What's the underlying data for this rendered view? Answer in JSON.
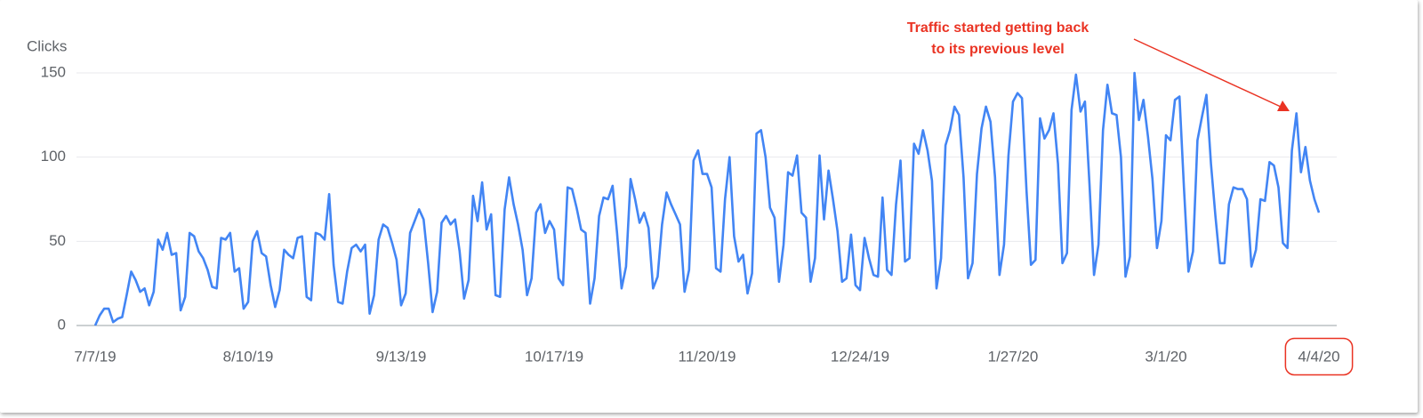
{
  "chart_data": {
    "type": "line",
    "y_label": "Clicks",
    "annotation": [
      "Traffic started getting back",
      "to its previous level"
    ],
    "annotation_color": "#ea3323",
    "categories": [
      "7/7/19",
      null,
      null,
      null,
      null,
      null,
      null,
      null,
      null,
      null,
      null,
      null,
      null,
      null,
      null,
      null,
      null,
      null,
      null,
      null,
      null,
      null,
      null,
      null,
      null,
      null,
      null,
      null,
      null,
      null,
      null,
      null,
      null,
      null,
      "8/10/19",
      null,
      null,
      null,
      null,
      null,
      null,
      null,
      null,
      null,
      null,
      null,
      null,
      null,
      null,
      null,
      null,
      null,
      null,
      null,
      null,
      null,
      null,
      null,
      null,
      null,
      null,
      null,
      null,
      null,
      null,
      null,
      null,
      null,
      "9/13/19",
      null,
      null,
      null,
      null,
      null,
      null,
      null,
      null,
      null,
      null,
      null,
      null,
      null,
      null,
      null,
      null,
      null,
      null,
      null,
      null,
      null,
      null,
      null,
      null,
      null,
      null,
      null,
      null,
      null,
      null,
      null,
      null,
      null,
      "10/17/19",
      null,
      null,
      null,
      null,
      null,
      null,
      null,
      null,
      null,
      null,
      null,
      null,
      null,
      null,
      null,
      null,
      null,
      null,
      null,
      null,
      null,
      null,
      null,
      null,
      null,
      null,
      null,
      null,
      null,
      null,
      null,
      null,
      null,
      "11/20/19",
      null,
      null,
      null,
      null,
      null,
      null,
      null,
      null,
      null,
      null,
      null,
      null,
      null,
      null,
      null,
      null,
      null,
      null,
      null,
      null,
      null,
      null,
      null,
      null,
      null,
      null,
      null,
      null,
      null,
      null,
      null,
      null,
      null,
      "12/24/19",
      null,
      null,
      null,
      null,
      null,
      null,
      null,
      null,
      null,
      null,
      null,
      null,
      null,
      null,
      null,
      null,
      null,
      null,
      null,
      null,
      null,
      null,
      null,
      null,
      null,
      null,
      null,
      null,
      null,
      null,
      null,
      null,
      null,
      "1/27/20",
      null,
      null,
      null,
      null,
      null,
      null,
      null,
      null,
      null,
      null,
      null,
      null,
      null,
      null,
      null,
      null,
      null,
      null,
      null,
      null,
      null,
      null,
      null,
      null,
      null,
      null,
      null,
      null,
      null,
      null,
      null,
      null,
      null,
      "3/1/20",
      null,
      null,
      null,
      null,
      null,
      null,
      null,
      null,
      null,
      null,
      null,
      null,
      null,
      null,
      null,
      null,
      null,
      null,
      null,
      null,
      null,
      null,
      null,
      null,
      null,
      null,
      null,
      null,
      null,
      null,
      null,
      null,
      null,
      "4/4/20"
    ],
    "values": [
      0,
      6,
      10,
      10,
      2,
      4,
      5,
      18,
      32,
      27,
      20,
      22,
      12,
      20,
      51,
      45,
      55,
      42,
      43,
      9,
      17,
      55,
      53,
      44,
      40,
      33,
      23,
      22,
      52,
      51,
      55,
      32,
      34,
      10,
      14,
      50,
      56,
      43,
      41,
      24,
      11,
      21,
      45,
      42,
      40,
      52,
      53,
      17,
      15,
      55,
      54,
      51,
      78,
      36,
      14,
      13,
      32,
      46,
      48,
      44,
      48,
      7,
      18,
      51,
      60,
      58,
      49,
      39,
      12,
      19,
      55,
      62,
      69,
      63,
      37,
      8,
      20,
      61,
      65,
      60,
      63,
      44,
      16,
      27,
      77,
      62,
      85,
      57,
      66,
      18,
      17,
      69,
      88,
      72,
      60,
      45,
      18,
      28,
      67,
      72,
      55,
      62,
      57,
      28,
      24,
      82,
      81,
      70,
      57,
      55,
      13,
      28,
      65,
      76,
      75,
      83,
      55,
      22,
      35,
      87,
      75,
      61,
      67,
      58,
      22,
      29,
      60,
      79,
      72,
      66,
      60,
      20,
      33,
      98,
      104,
      90,
      90,
      82,
      34,
      32,
      75,
      100,
      53,
      38,
      42,
      19,
      31,
      114,
      116,
      100,
      70,
      64,
      26,
      48,
      91,
      89,
      101,
      67,
      64,
      26,
      40,
      101,
      63,
      92,
      75,
      56,
      26,
      28,
      54,
      24,
      21,
      52,
      40,
      30,
      29,
      76,
      33,
      30,
      72,
      98,
      38,
      40,
      108,
      102,
      116,
      104,
      86,
      22,
      40,
      107,
      116,
      130,
      125,
      88,
      28,
      37,
      90,
      117,
      130,
      121,
      88,
      30,
      48,
      101,
      133,
      138,
      135,
      80,
      36,
      39,
      123,
      111,
      116,
      126,
      96,
      37,
      43,
      128,
      149,
      127,
      133,
      84,
      30,
      48,
      116,
      143,
      126,
      125,
      100,
      29,
      41,
      150,
      122,
      134,
      112,
      87,
      46,
      62,
      113,
      110,
      134,
      136,
      82,
      32,
      44,
      110,
      124,
      137,
      96,
      65,
      37,
      37,
      72,
      82,
      81,
      81,
      75,
      35,
      45,
      75,
      74,
      97,
      95,
      82,
      49,
      46,
      104,
      126,
      91,
      106,
      86,
      75,
      67
    ],
    "color": "#4285f4",
    "ylim": [
      0,
      158
    ],
    "yticks": [
      0,
      50,
      100,
      150
    ],
    "grid": true
  }
}
